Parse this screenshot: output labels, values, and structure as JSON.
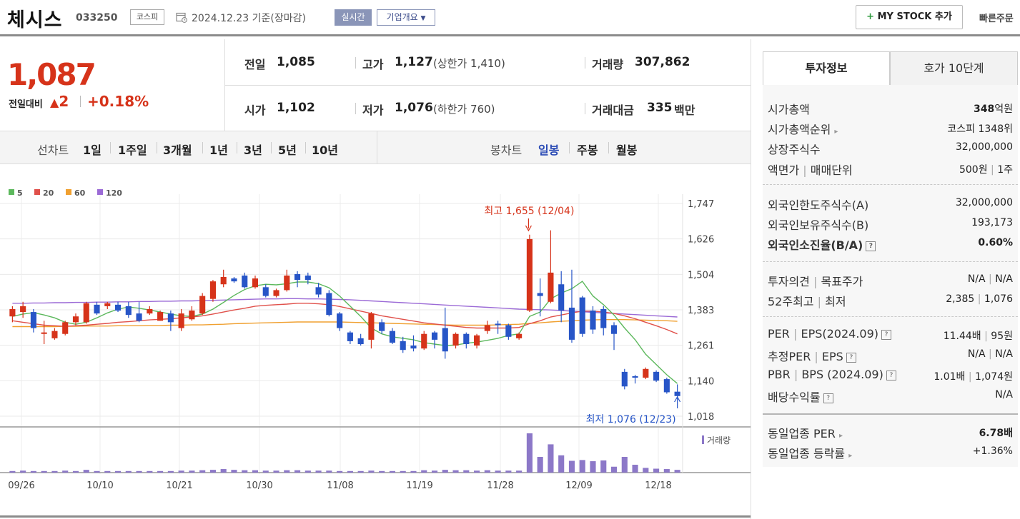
{
  "header": {
    "stock_name": "체시스",
    "stock_code": "033250",
    "market": "코스피",
    "base_date": "2024.12.23 기준(장마감)",
    "realtime_label": "실시간",
    "company_overview_label": "기업개요",
    "mystock_label": "MY STOCK 추가",
    "quick_order_label": "빠른주문"
  },
  "price": {
    "current": "1,087",
    "change_label": "전일대비",
    "change_amount": "2",
    "change_percent": "+0.18%",
    "prev_close_label": "전일",
    "prev_close": "1,085",
    "open_label": "시가",
    "open": "1,102",
    "high_label": "고가",
    "high": "1,127",
    "upper_limit": "(상한가 1,410)",
    "low_label": "저가",
    "low": "1,076",
    "lower_limit": "(하한가 760)",
    "volume_label": "거래량",
    "volume": "307,862",
    "value_label": "거래대금",
    "value": "335",
    "value_unit": "백만"
  },
  "toolbar": {
    "line_chart_label": "선차트",
    "periods": [
      "1일",
      "1주일",
      "3개월",
      "1년",
      "3년",
      "5년",
      "10년"
    ],
    "candle_label": "봉차트",
    "candle_types": [
      "일봉",
      "주봉",
      "월봉"
    ],
    "candle_active": "일봉"
  },
  "tabs": {
    "invest_info": "투자정보",
    "hoga10": "호가 10단계"
  },
  "info": {
    "market_cap_label": "시가총액",
    "market_cap_num": "348",
    "market_cap_unit": "억원",
    "market_cap_rank_label": "시가총액순위",
    "market_cap_rank": "코스피 1348위",
    "listed_shares_label": "상장주식수",
    "listed_shares": "32,000,000",
    "par_label": "액면가",
    "unit_label": "매매단위",
    "par": "500원",
    "trade_unit": "1주",
    "foreign_limit_label": "외국인한도주식수(A)",
    "foreign_limit": "32,000,000",
    "foreign_hold_label": "외국인보유주식수(B)",
    "foreign_hold": "193,173",
    "foreign_ratio_label": "외국인소진율(B/A)",
    "foreign_ratio": "0.60%",
    "opinion_label": "투자의견",
    "target_label": "목표주가",
    "opinion": "N/A",
    "target": "N/A",
    "w52_high_label": "52주최고",
    "w52_low_label": "최저",
    "w52_high": "2,385",
    "w52_low": "1,076",
    "per_label": "PER",
    "eps_label": "EPS(2024.09)",
    "per": "11.44배",
    "eps": "95원",
    "est_per_label": "추정PER",
    "est_eps_label": "EPS",
    "est_per": "N/A",
    "est_eps": "N/A",
    "pbr_label": "PBR",
    "bps_label": "BPS (2024.09)",
    "pbr": "1.01배",
    "bps": "1,074원",
    "dividend_label": "배당수익률",
    "dividend": "N/A",
    "sector_per_label": "동일업종 PER",
    "sector_per": "6.78배",
    "sector_change_label": "동일업종 등락률",
    "sector_change": "+1.36%"
  },
  "colors": {
    "up": "#d6331a",
    "down": "#2755c7",
    "ma5": "#5cb85c",
    "ma20": "#e0504a",
    "ma60": "#f0a030",
    "ma120": "#9b6ad6",
    "volume_bar": "#8c78c8"
  },
  "chart_data": {
    "type": "candlestick",
    "legend": [
      "5",
      "20",
      "60",
      "120"
    ],
    "ylim": [
      1018,
      1747
    ],
    "y_ticks": [
      "1,747",
      "1,626",
      "1,504",
      "1,383",
      "1,261",
      "1,140",
      "1,018"
    ],
    "x_ticks": [
      "09/26",
      "10/10",
      "10/21",
      "10/30",
      "11/08",
      "11/19",
      "11/28",
      "12/09",
      "12/18"
    ],
    "high_annotation": "최고 1,655 (12/04)",
    "low_annotation": "최저 1,076 (12/23)",
    "volume_label": "거래량",
    "candles": [
      {
        "o": 1360,
        "c": 1385,
        "h": 1395,
        "l": 1340
      },
      {
        "o": 1375,
        "c": 1395,
        "h": 1410,
        "l": 1355
      },
      {
        "o": 1375,
        "c": 1320,
        "h": 1385,
        "l": 1305
      },
      {
        "o": 1300,
        "c": 1305,
        "h": 1345,
        "l": 1265
      },
      {
        "o": 1285,
        "c": 1310,
        "h": 1320,
        "l": 1280
      },
      {
        "o": 1300,
        "c": 1340,
        "h": 1345,
        "l": 1295
      },
      {
        "o": 1340,
        "c": 1360,
        "h": 1370,
        "l": 1330
      },
      {
        "o": 1340,
        "c": 1405,
        "h": 1410,
        "l": 1335
      },
      {
        "o": 1400,
        "c": 1370,
        "h": 1410,
        "l": 1365
      },
      {
        "o": 1395,
        "c": 1405,
        "h": 1410,
        "l": 1385
      },
      {
        "o": 1400,
        "c": 1380,
        "h": 1410,
        "l": 1375
      },
      {
        "o": 1395,
        "c": 1365,
        "h": 1410,
        "l": 1355
      },
      {
        "o": 1370,
        "c": 1345,
        "h": 1410,
        "l": 1340
      },
      {
        "o": 1370,
        "c": 1385,
        "h": 1395,
        "l": 1365
      },
      {
        "o": 1345,
        "c": 1375,
        "h": 1380,
        "l": 1345
      },
      {
        "o": 1370,
        "c": 1340,
        "h": 1380,
        "l": 1310
      },
      {
        "o": 1320,
        "c": 1370,
        "h": 1385,
        "l": 1310
      },
      {
        "o": 1350,
        "c": 1380,
        "h": 1395,
        "l": 1345
      },
      {
        "o": 1370,
        "c": 1430,
        "h": 1440,
        "l": 1365
      },
      {
        "o": 1420,
        "c": 1480,
        "h": 1485,
        "l": 1410
      },
      {
        "o": 1470,
        "c": 1495,
        "h": 1520,
        "l": 1460
      },
      {
        "o": 1490,
        "c": 1480,
        "h": 1495,
        "l": 1475
      },
      {
        "o": 1500,
        "c": 1460,
        "h": 1510,
        "l": 1455
      },
      {
        "o": 1460,
        "c": 1490,
        "h": 1500,
        "l": 1455
      },
      {
        "o": 1460,
        "c": 1430,
        "h": 1470,
        "l": 1425
      },
      {
        "o": 1430,
        "c": 1450,
        "h": 1455,
        "l": 1425
      },
      {
        "o": 1450,
        "c": 1500,
        "h": 1520,
        "l": 1445
      },
      {
        "o": 1505,
        "c": 1485,
        "h": 1515,
        "l": 1460
      },
      {
        "o": 1500,
        "c": 1485,
        "h": 1510,
        "l": 1470
      },
      {
        "o": 1460,
        "c": 1435,
        "h": 1475,
        "l": 1425
      },
      {
        "o": 1440,
        "c": 1365,
        "h": 1450,
        "l": 1360
      },
      {
        "o": 1370,
        "c": 1320,
        "h": 1375,
        "l": 1310
      },
      {
        "o": 1305,
        "c": 1275,
        "h": 1310,
        "l": 1265
      },
      {
        "o": 1285,
        "c": 1265,
        "h": 1300,
        "l": 1260
      },
      {
        "o": 1280,
        "c": 1370,
        "h": 1375,
        "l": 1250
      },
      {
        "o": 1340,
        "c": 1310,
        "h": 1350,
        "l": 1300
      },
      {
        "o": 1310,
        "c": 1270,
        "h": 1320,
        "l": 1265
      },
      {
        "o": 1275,
        "c": 1245,
        "h": 1290,
        "l": 1235
      },
      {
        "o": 1260,
        "c": 1250,
        "h": 1295,
        "l": 1240
      },
      {
        "o": 1250,
        "c": 1300,
        "h": 1310,
        "l": 1245
      },
      {
        "o": 1305,
        "c": 1280,
        "h": 1310,
        "l": 1250
      },
      {
        "o": 1320,
        "c": 1240,
        "h": 1390,
        "l": 1215
      },
      {
        "o": 1260,
        "c": 1300,
        "h": 1305,
        "l": 1250
      },
      {
        "o": 1300,
        "c": 1265,
        "h": 1305,
        "l": 1250
      },
      {
        "o": 1260,
        "c": 1295,
        "h": 1300,
        "l": 1250
      },
      {
        "o": 1310,
        "c": 1330,
        "h": 1345,
        "l": 1300
      },
      {
        "o": 1335,
        "c": 1330,
        "h": 1345,
        "l": 1300
      },
      {
        "o": 1330,
        "c": 1290,
        "h": 1335,
        "l": 1280
      },
      {
        "o": 1285,
        "c": 1300,
        "h": 1305,
        "l": 1280
      },
      {
        "o": 1380,
        "c": 1625,
        "h": 1640,
        "l": 1375
      },
      {
        "o": 1440,
        "c": 1430,
        "h": 1490,
        "l": 1360
      },
      {
        "o": 1410,
        "c": 1510,
        "h": 1655,
        "l": 1405
      },
      {
        "o": 1470,
        "c": 1380,
        "h": 1515,
        "l": 1340
      },
      {
        "o": 1390,
        "c": 1280,
        "h": 1520,
        "l": 1270
      },
      {
        "o": 1425,
        "c": 1300,
        "h": 1430,
        "l": 1290
      },
      {
        "o": 1380,
        "c": 1315,
        "h": 1395,
        "l": 1300
      },
      {
        "o": 1385,
        "c": 1320,
        "h": 1395,
        "l": 1295
      },
      {
        "o": 1330,
        "c": 1300,
        "h": 1340,
        "l": 1245
      },
      {
        "o": 1170,
        "c": 1120,
        "h": 1180,
        "l": 1110
      },
      {
        "o": 1155,
        "c": 1150,
        "h": 1160,
        "l": 1130
      },
      {
        "o": 1150,
        "c": 1180,
        "h": 1185,
        "l": 1145
      },
      {
        "o": 1170,
        "c": 1140,
        "h": 1175,
        "l": 1135
      },
      {
        "o": 1145,
        "c": 1100,
        "h": 1150,
        "l": 1095
      },
      {
        "o": 1102,
        "c": 1087,
        "h": 1127,
        "l": 1076
      }
    ],
    "volume_rel": [
      0.04,
      0.05,
      0.04,
      0.04,
      0.04,
      0.05,
      0.04,
      0.07,
      0.04,
      0.04,
      0.04,
      0.04,
      0.04,
      0.04,
      0.04,
      0.04,
      0.05,
      0.05,
      0.06,
      0.07,
      0.09,
      0.07,
      0.06,
      0.06,
      0.05,
      0.05,
      0.06,
      0.06,
      0.05,
      0.05,
      0.05,
      0.04,
      0.04,
      0.04,
      0.05,
      0.04,
      0.04,
      0.04,
      0.04,
      0.06,
      0.05,
      0.07,
      0.06,
      0.06,
      0.05,
      0.06,
      0.05,
      0.05,
      0.05,
      1.0,
      0.4,
      0.72,
      0.44,
      0.3,
      0.32,
      0.29,
      0.31,
      0.15,
      0.4,
      0.2,
      0.12,
      0.1,
      0.09,
      0.07
    ],
    "ma": {
      "5": [
        1360,
        1368,
        1373,
        1365,
        1355,
        1340,
        1333,
        1340,
        1355,
        1372,
        1385,
        1392,
        1388,
        1382,
        1375,
        1368,
        1362,
        1360,
        1368,
        1385,
        1408,
        1432,
        1452,
        1465,
        1470,
        1468,
        1472,
        1478,
        1478,
        1472,
        1458,
        1430,
        1395,
        1360,
        1320,
        1300,
        1290,
        1285,
        1280,
        1270,
        1265,
        1260,
        1262,
        1268,
        1272,
        1278,
        1285,
        1295,
        1300,
        1360,
        1375,
        1420,
        1440,
        1455,
        1480,
        1430,
        1400,
        1365,
        1320,
        1280,
        1230,
        1195,
        1160,
        1130
      ],
      "20": [
        1345,
        1340,
        1335,
        1330,
        1328,
        1326,
        1328,
        1330,
        1333,
        1336,
        1340,
        1342,
        1345,
        1348,
        1350,
        1352,
        1355,
        1358,
        1362,
        1368,
        1375,
        1382,
        1388,
        1395,
        1398,
        1400,
        1402,
        1405,
        1405,
        1403,
        1400,
        1394,
        1386,
        1378,
        1370,
        1362,
        1356,
        1350,
        1344,
        1338,
        1334,
        1330,
        1326,
        1322,
        1320,
        1320,
        1320,
        1320,
        1322,
        1335,
        1345,
        1358,
        1365,
        1372,
        1378,
        1378,
        1375,
        1370,
        1362,
        1352,
        1340,
        1328,
        1315,
        1300
      ],
      "60": [
        1325,
        1325,
        1325,
        1325,
        1325,
        1326,
        1326,
        1327,
        1327,
        1327,
        1328,
        1328,
        1328,
        1329,
        1329,
        1330,
        1330,
        1331,
        1331,
        1332,
        1333,
        1335,
        1336,
        1337,
        1338,
        1339,
        1340,
        1341,
        1341,
        1341,
        1341,
        1341,
        1340,
        1339,
        1338,
        1337,
        1336,
        1335,
        1334,
        1333,
        1332,
        1331,
        1330,
        1330,
        1330,
        1330,
        1331,
        1332,
        1333,
        1336,
        1338,
        1341,
        1343,
        1345,
        1347,
        1348,
        1349,
        1349,
        1349,
        1348,
        1347,
        1346,
        1345,
        1343
      ],
      "120": [
        1405,
        1405,
        1406,
        1406,
        1407,
        1407,
        1408,
        1408,
        1409,
        1409,
        1410,
        1410,
        1411,
        1411,
        1412,
        1412,
        1413,
        1413,
        1414,
        1415,
        1416,
        1417,
        1418,
        1419,
        1420,
        1420,
        1421,
        1421,
        1420,
        1420,
        1419,
        1418,
        1417,
        1415,
        1413,
        1411,
        1409,
        1407,
        1405,
        1403,
        1401,
        1399,
        1397,
        1395,
        1393,
        1391,
        1389,
        1387,
        1385,
        1384,
        1383,
        1382,
        1380,
        1378,
        1376,
        1374,
        1372,
        1370,
        1368,
        1366,
        1364,
        1362,
        1360,
        1358
      ]
    }
  }
}
